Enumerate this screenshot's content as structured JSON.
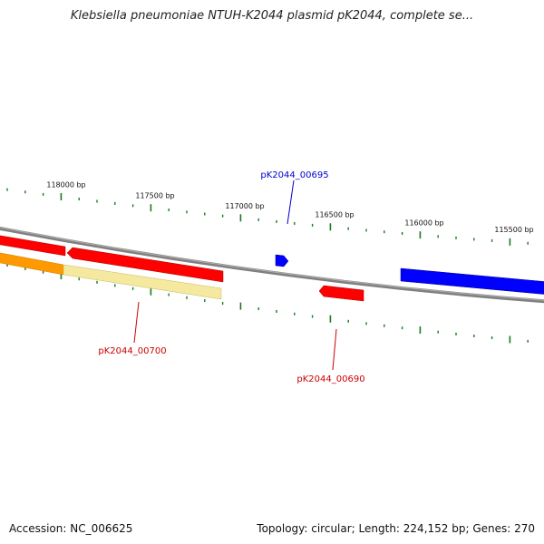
{
  "title": "Klebsiella pneumoniae NTUH-K2044 plasmid pK2044, complete se...",
  "footer": {
    "accession": "Accession: NC_006625",
    "summary": "Topology: circular; Length: 224,152 bp; Genes: 270"
  },
  "scale": {
    "labels": [
      {
        "text": "118000 bp",
        "bp": 118000
      },
      {
        "text": "117500 bp",
        "bp": 117500
      },
      {
        "text": "117000 bp",
        "bp": 117000
      },
      {
        "text": "116500 bp",
        "bp": 116500
      },
      {
        "text": "116000 bp",
        "bp": 116000
      },
      {
        "text": "115500 bp",
        "bp": 115500
      }
    ]
  },
  "genes": [
    {
      "label": "pK2044_00695",
      "color": "#0000cc",
      "strand": "forward"
    },
    {
      "label": "pK2044_00700",
      "color": "#cc0000",
      "strand": "reverse"
    },
    {
      "label": "pK2044_00690",
      "color": "#cc0000",
      "strand": "reverse"
    }
  ],
  "colors": {
    "backbone": "#808080",
    "tick": "#1a7a1a",
    "red_feature": "#ff0000",
    "blue_feature": "#0000ff",
    "orange_feature": "#ff9900",
    "yellow_feature": "#f5e9a0"
  }
}
